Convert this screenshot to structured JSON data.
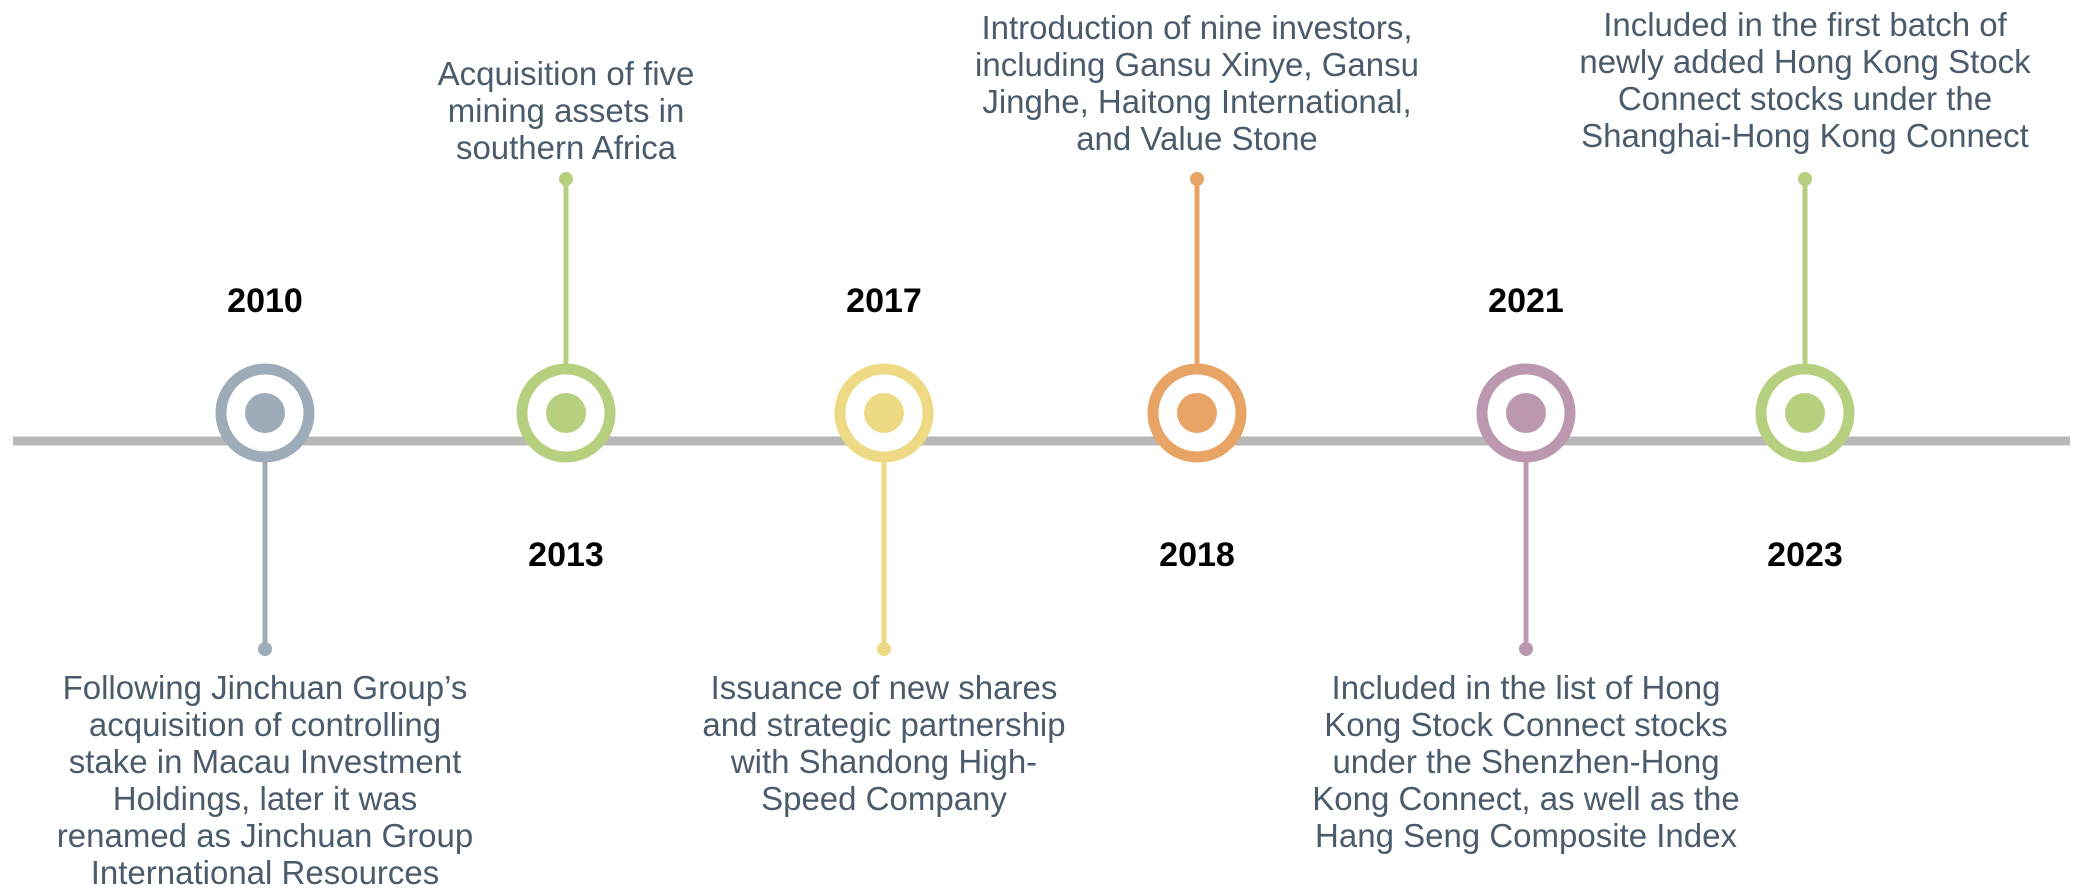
{
  "events": [
    {
      "year": "2010",
      "color": "#9eabb8",
      "lines": [
        "Following Jinchuan Group’s",
        "acquisition of controlling",
        "stake in Macau Investment",
        "Holdings, later it was",
        "renamed as Jinchuan Group",
        "International Resources"
      ]
    },
    {
      "year": "2013",
      "color": "#b6d07f",
      "lines": [
        "Acquisition of five",
        "mining assets in",
        "southern Africa"
      ]
    },
    {
      "year": "2017",
      "color": "#eeda85",
      "lines": [
        "Issuance of new shares",
        "and strategic partnership",
        "with Shandong High-",
        "Speed Company"
      ]
    },
    {
      "year": "2018",
      "color": "#e8a464",
      "lines": [
        "Introduction of nine investors,",
        "including Gansu Xinye, Gansu",
        "Jinghe, Haitong International,",
        "and Value Stone"
      ]
    },
    {
      "year": "2021",
      "color": "#bc98b0",
      "lines": [
        "Included in the list of Hong",
        "Kong Stock Connect stocks",
        "under the Shenzhen-Hong",
        "Kong Connect, as well as the",
        "Hang Seng Composite Index"
      ]
    },
    {
      "year": "2023",
      "color": "#b6d07f",
      "lines": [
        "Included in the first batch of",
        "newly added Hong Kong Stock",
        "Connect stocks under the",
        "Shanghai-Hong Kong Connect"
      ]
    }
  ]
}
